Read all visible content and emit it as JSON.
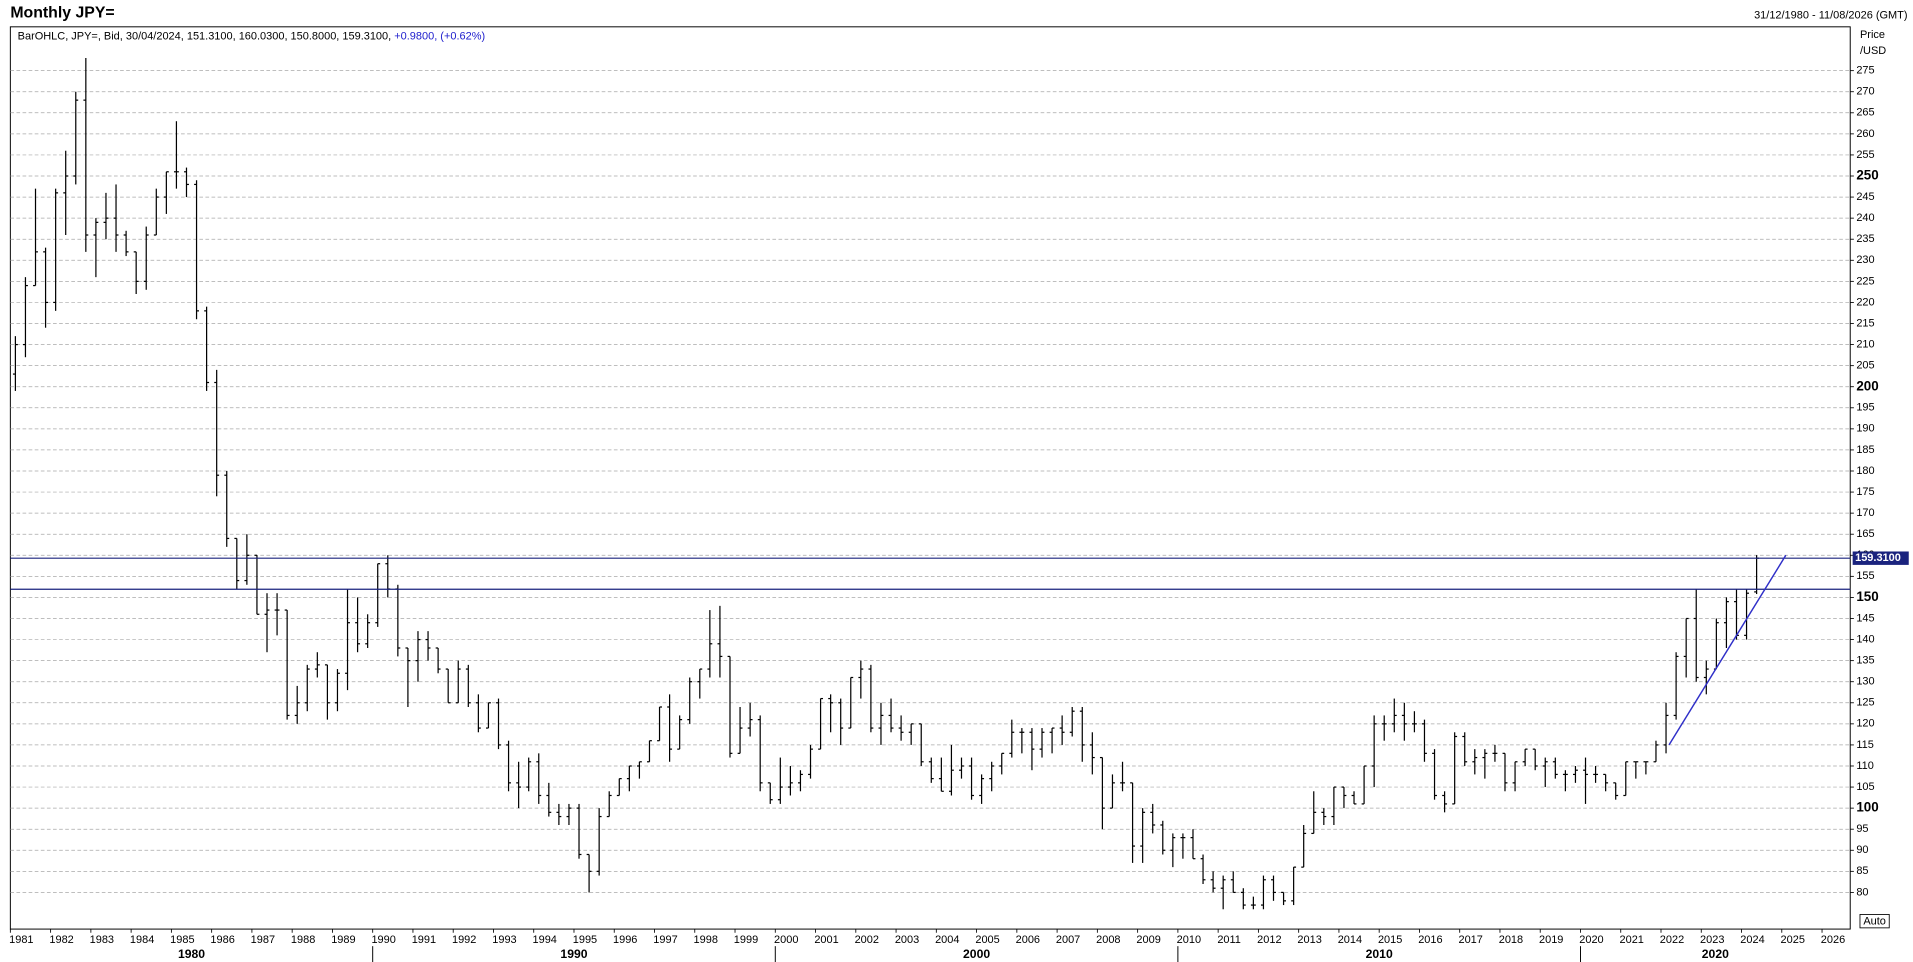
{
  "chart_data": {
    "type": "ohlc",
    "title": "Monthly JPY=",
    "date_range": "31/12/1980 - 11/08/2026 (GMT)",
    "legend": {
      "prefix": "BarOHLC, JPY=, Bid, 30/04/2024, 151.3100, 160.0300, 150.8000, 159.3100,",
      "change": "+0.9800, (+0.62%)"
    },
    "y_axis_label": [
      "Price",
      "/USD"
    ],
    "button": "Auto",
    "color": "#000000",
    "xlim": [
      1981,
      2026.7
    ],
    "ylim": [
      71.3,
      285.4
    ],
    "xticks": [
      1981,
      1982,
      1983,
      1984,
      1985,
      1986,
      1987,
      1988,
      1989,
      1990,
      1991,
      1992,
      1993,
      1994,
      1995,
      1996,
      1997,
      1998,
      1999,
      2000,
      2001,
      2002,
      2003,
      2004,
      2005,
      2006,
      2007,
      2008,
      2009,
      2010,
      2011,
      2012,
      2013,
      2014,
      2015,
      2016,
      2017,
      2018,
      2019,
      2020,
      2021,
      2022,
      2023,
      2024,
      2025,
      2026
    ],
    "decades": [
      1980,
      1990,
      2000,
      2010,
      2020
    ],
    "yticks": [
      80,
      85,
      90,
      95,
      100,
      105,
      110,
      115,
      120,
      125,
      130,
      135,
      140,
      145,
      150,
      155,
      160,
      165,
      170,
      175,
      180,
      185,
      190,
      195,
      200,
      205,
      210,
      215,
      220,
      225,
      230,
      235,
      240,
      245,
      250,
      255,
      260,
      265,
      270,
      275
    ],
    "grid": true,
    "hlines": [
      {
        "value": 159.31,
        "label": "159.3100",
        "color": "#1a237e"
      },
      {
        "value": 151.95,
        "color": "#1a237e"
      }
    ],
    "trendline": {
      "x": [
        2022.2,
        2025.1
      ],
      "y": [
        115,
        160
      ],
      "color": "#2f2fc8"
    },
    "x": [
      1981.125,
      1981.375,
      1981.625,
      1981.875,
      1982.125,
      1982.375,
      1982.625,
      1982.875,
      1983.125,
      1983.375,
      1983.625,
      1983.875,
      1984.125,
      1984.375,
      1984.625,
      1984.875,
      1985.125,
      1985.375,
      1985.625,
      1985.875,
      1986.125,
      1986.375,
      1986.625,
      1986.875,
      1987.125,
      1987.375,
      1987.625,
      1987.875,
      1988.125,
      1988.375,
      1988.625,
      1988.875,
      1989.125,
      1989.375,
      1989.625,
      1989.875,
      1990.125,
      1990.375,
      1990.625,
      1990.875,
      1991.125,
      1991.375,
      1991.625,
      1991.875,
      1992.125,
      1992.375,
      1992.625,
      1992.875,
      1993.125,
      1993.375,
      1993.625,
      1993.875,
      1994.125,
      1994.375,
      1994.625,
      1994.875,
      1995.125,
      1995.375,
      1995.625,
      1995.875,
      1996.125,
      1996.375,
      1996.625,
      1996.875,
      1997.125,
      1997.375,
      1997.625,
      1997.875,
      1998.125,
      1998.375,
      1998.625,
      1998.875,
      1999.125,
      1999.375,
      1999.625,
      1999.875,
      2000.125,
      2000.375,
      2000.625,
      2000.875,
      2001.125,
      2001.375,
      2001.625,
      2001.875,
      2002.125,
      2002.375,
      2002.625,
      2002.875,
      2003.125,
      2003.375,
      2003.625,
      2003.875,
      2004.125,
      2004.375,
      2004.625,
      2004.875,
      2005.125,
      2005.375,
      2005.625,
      2005.875,
      2006.125,
      2006.375,
      2006.625,
      2006.875,
      2007.125,
      2007.375,
      2007.625,
      2007.875,
      2008.125,
      2008.375,
      2008.625,
      2008.875,
      2009.125,
      2009.375,
      2009.625,
      2009.875,
      2010.125,
      2010.375,
      2010.625,
      2010.875,
      2011.125,
      2011.375,
      2011.625,
      2011.875,
      2012.125,
      2012.375,
      2012.625,
      2012.875,
      2013.125,
      2013.375,
      2013.625,
      2013.875,
      2014.125,
      2014.375,
      2014.625,
      2014.875,
      2015.125,
      2015.375,
      2015.625,
      2015.875,
      2016.125,
      2016.375,
      2016.625,
      2016.875,
      2017.125,
      2017.375,
      2017.625,
      2017.875,
      2018.125,
      2018.375,
      2018.625,
      2018.875,
      2019.125,
      2019.375,
      2019.625,
      2019.875,
      2020.125,
      2020.375,
      2020.625,
      2020.875,
      2021.125,
      2021.375,
      2021.625,
      2021.875,
      2022.125,
      2022.375,
      2022.625,
      2022.875,
      2023.125,
      2023.375,
      2023.625,
      2023.875,
      2024.125,
      2024.375
    ],
    "ohlc": [
      [
        203,
        212,
        199,
        210
      ],
      [
        210,
        226,
        207,
        224
      ],
      [
        224,
        247,
        224,
        232
      ],
      [
        232,
        233,
        214,
        220
      ],
      [
        220,
        247,
        218,
        246
      ],
      [
        246,
        256,
        236,
        250
      ],
      [
        250,
        270,
        248,
        268
      ],
      [
        268,
        278,
        232,
        236
      ],
      [
        236,
        240,
        226,
        239
      ],
      [
        239,
        246,
        235,
        240
      ],
      [
        240,
        248,
        232,
        236
      ],
      [
        236,
        237,
        231,
        232
      ],
      [
        232,
        232,
        222,
        225
      ],
      [
        225,
        238,
        223,
        236
      ],
      [
        236,
        247,
        236,
        245
      ],
      [
        245,
        251,
        241,
        251
      ],
      [
        251,
        263,
        247,
        251
      ],
      [
        251,
        252,
        245,
        248
      ],
      [
        248,
        249,
        216,
        218
      ],
      [
        218,
        219,
        199,
        201
      ],
      [
        201,
        204,
        174,
        179
      ],
      [
        179,
        180,
        162,
        164
      ],
      [
        164,
        164,
        152,
        154
      ],
      [
        154,
        165,
        153,
        160
      ],
      [
        160,
        160,
        146,
        146
      ],
      [
        146,
        151,
        137,
        147
      ],
      [
        147,
        151,
        141,
        147
      ],
      [
        147,
        147,
        121,
        122
      ],
      [
        122,
        129,
        120,
        125
      ],
      [
        125,
        134,
        123,
        133
      ],
      [
        133,
        137,
        131,
        134
      ],
      [
        134,
        134,
        121,
        125
      ],
      [
        125,
        133,
        123,
        132
      ],
      [
        132,
        152,
        128,
        144
      ],
      [
        144,
        150,
        137,
        139
      ],
      [
        139,
        146,
        138,
        144
      ],
      [
        144,
        158,
        143,
        158
      ],
      [
        158,
        160,
        150,
        152
      ],
      [
        152,
        153,
        136,
        138
      ],
      [
        138,
        138,
        124,
        135
      ],
      [
        135,
        142,
        130,
        140
      ],
      [
        140,
        142,
        135,
        138
      ],
      [
        138,
        138,
        132,
        133
      ],
      [
        133,
        133,
        125,
        125
      ],
      [
        125,
        135,
        125,
        133
      ],
      [
        133,
        134,
        124,
        125
      ],
      [
        125,
        127,
        118,
        119
      ],
      [
        119,
        125,
        119,
        125
      ],
      [
        125,
        126,
        114,
        115
      ],
      [
        115,
        116,
        104,
        106
      ],
      [
        106,
        111,
        100,
        105
      ],
      [
        105,
        112,
        104,
        111
      ],
      [
        111,
        113,
        101,
        103
      ],
      [
        103,
        106,
        98,
        99
      ],
      [
        99,
        101,
        96,
        98
      ],
      [
        98,
        101,
        96,
        100
      ],
      [
        100,
        101,
        88,
        89
      ],
      [
        89,
        89,
        80,
        85
      ],
      [
        85,
        100,
        84,
        98
      ],
      [
        98,
        104,
        98,
        103
      ],
      [
        103,
        107,
        103,
        107
      ],
      [
        107,
        110,
        104,
        110
      ],
      [
        110,
        111,
        107,
        111
      ],
      [
        111,
        116,
        111,
        116
      ],
      [
        116,
        124,
        116,
        124
      ],
      [
        124,
        127,
        111,
        114
      ],
      [
        114,
        122,
        114,
        121
      ],
      [
        121,
        131,
        120,
        130
      ],
      [
        130,
        133,
        126,
        133
      ],
      [
        133,
        147,
        131,
        139
      ],
      [
        139,
        148,
        131,
        136
      ],
      [
        136,
        136,
        112,
        113
      ],
      [
        113,
        124,
        113,
        119
      ],
      [
        119,
        125,
        117,
        121
      ],
      [
        121,
        122,
        104,
        106
      ],
      [
        106,
        106,
        101,
        102
      ],
      [
        102,
        112,
        101,
        105
      ],
      [
        105,
        110,
        103,
        106
      ],
      [
        106,
        109,
        104,
        108
      ],
      [
        108,
        115,
        107,
        114
      ],
      [
        114,
        126,
        114,
        126
      ],
      [
        126,
        127,
        118,
        125
      ],
      [
        125,
        126,
        115,
        119
      ],
      [
        119,
        131,
        119,
        131
      ],
      [
        131,
        135,
        126,
        133
      ],
      [
        133,
        134,
        118,
        119
      ],
      [
        119,
        125,
        115,
        122
      ],
      [
        122,
        126,
        118,
        119
      ],
      [
        119,
        122,
        116,
        118
      ],
      [
        118,
        120,
        115,
        120
      ],
      [
        120,
        120,
        110,
        111
      ],
      [
        111,
        112,
        106,
        107
      ],
      [
        107,
        112,
        104,
        104
      ],
      [
        104,
        115,
        103,
        109
      ],
      [
        109,
        112,
        107,
        110
      ],
      [
        110,
        112,
        102,
        103
      ],
      [
        103,
        108,
        101,
        107
      ],
      [
        107,
        111,
        104,
        110
      ],
      [
        110,
        113,
        108,
        113
      ],
      [
        113,
        121,
        112,
        118
      ],
      [
        118,
        119,
        113,
        118
      ],
      [
        118,
        119,
        109,
        114
      ],
      [
        114,
        119,
        112,
        118
      ],
      [
        118,
        119,
        113,
        119
      ],
      [
        119,
        122,
        115,
        118
      ],
      [
        118,
        124,
        117,
        123
      ],
      [
        123,
        124,
        111,
        115
      ],
      [
        115,
        118,
        108,
        112
      ],
      [
        112,
        112,
        95,
        100
      ],
      [
        100,
        108,
        100,
        106
      ],
      [
        106,
        111,
        104,
        106
      ],
      [
        106,
        106,
        87,
        91
      ],
      [
        91,
        100,
        87,
        99
      ],
      [
        99,
        101,
        94,
        96
      ],
      [
        96,
        97,
        89,
        90
      ],
      [
        90,
        94,
        86,
        93
      ],
      [
        93,
        94,
        88,
        93
      ],
      [
        93,
        95,
        88,
        88
      ],
      [
        88,
        89,
        82,
        83
      ],
      [
        83,
        85,
        80,
        81
      ],
      [
        81,
        84,
        76,
        83
      ],
      [
        83,
        85,
        80,
        80
      ],
      [
        80,
        81,
        76,
        77
      ],
      [
        77,
        79,
        76,
        77
      ],
      [
        77,
        84,
        76,
        83
      ],
      [
        83,
        84,
        78,
        80
      ],
      [
        80,
        80,
        77,
        78
      ],
      [
        78,
        86,
        77,
        86
      ],
      [
        86,
        96,
        86,
        94
      ],
      [
        94,
        104,
        94,
        99
      ],
      [
        99,
        100,
        96,
        98
      ],
      [
        98,
        105,
        96,
        105
      ],
      [
        105,
        105,
        100,
        103
      ],
      [
        103,
        104,
        101,
        101
      ],
      [
        101,
        110,
        101,
        110
      ],
      [
        110,
        122,
        105,
        120
      ],
      [
        120,
        122,
        116,
        120
      ],
      [
        120,
        126,
        118,
        122
      ],
      [
        122,
        125,
        116,
        120
      ],
      [
        120,
        123,
        118,
        120
      ],
      [
        120,
        121,
        111,
        113
      ],
      [
        113,
        114,
        102,
        103
      ],
      [
        103,
        104,
        99,
        101
      ],
      [
        101,
        118,
        101,
        117
      ],
      [
        117,
        118,
        110,
        111
      ],
      [
        111,
        114,
        108,
        112
      ],
      [
        112,
        114,
        107,
        113
      ],
      [
        113,
        115,
        111,
        113
      ],
      [
        113,
        113,
        104,
        106
      ],
      [
        106,
        111,
        104,
        111
      ],
      [
        111,
        114,
        110,
        114
      ],
      [
        114,
        114,
        109,
        110
      ],
      [
        110,
        112,
        105,
        111
      ],
      [
        111,
        112,
        107,
        108
      ],
      [
        108,
        109,
        104,
        108
      ],
      [
        108,
        110,
        106,
        109
      ],
      [
        109,
        112,
        101,
        108
      ],
      [
        108,
        110,
        106,
        108
      ],
      [
        108,
        108,
        104,
        106
      ],
      [
        106,
        106,
        102,
        103
      ],
      [
        103,
        111,
        103,
        111
      ],
      [
        111,
        111,
        107,
        111
      ],
      [
        111,
        111,
        108,
        111
      ],
      [
        111,
        116,
        111,
        115
      ],
      [
        115,
        125,
        113,
        122
      ],
      [
        122,
        137,
        121,
        136
      ],
      [
        136,
        145,
        131,
        145
      ],
      [
        145,
        152,
        130,
        131
      ],
      [
        131,
        135,
        127,
        133
      ],
      [
        133,
        145,
        133,
        144
      ],
      [
        144,
        150,
        138,
        149
      ],
      [
        149,
        152,
        140,
        141
      ],
      [
        141,
        152,
        140,
        151
      ],
      [
        151.31,
        160.03,
        150.8,
        159.31
      ]
    ]
  }
}
